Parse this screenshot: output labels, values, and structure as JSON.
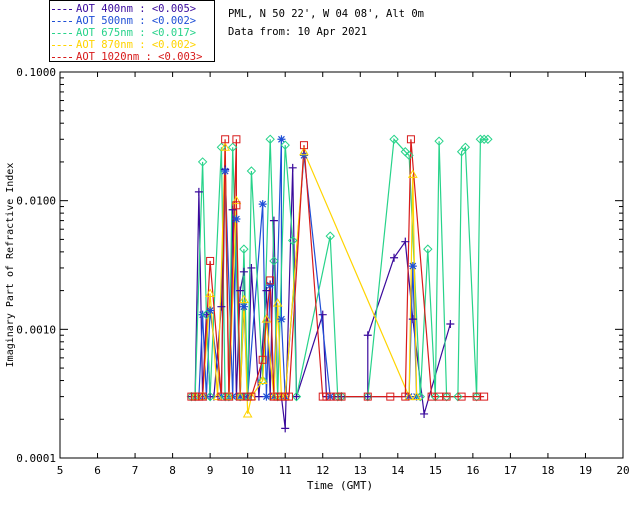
{
  "info": {
    "location": "PML, N 50 22', W 04 08', Alt 0m",
    "date": "Data from: 10 Apr 2021"
  },
  "legend": [
    {
      "label": "AOT  400nm : <0.005>",
      "color": "#3a0a9c"
    },
    {
      "label": "AOT  500nm : <0.002>",
      "color": "#1f4fd6"
    },
    {
      "label": "AOT  675nm : <0.017>",
      "color": "#27d38a"
    },
    {
      "label": "AOT  870nm : <0.002>",
      "color": "#ffd400"
    },
    {
      "label": "AOT 1020nm : <0.003>",
      "color": "#d81b1b"
    }
  ],
  "chart_data": {
    "type": "line",
    "title": "",
    "xlabel": "Time (GMT)",
    "ylabel": "Imaginary Part of Refractive Index",
    "xlim": [
      5,
      20
    ],
    "ylim": [
      0.0001,
      0.1
    ],
    "yscale": "log",
    "xticks": [
      "5",
      "6",
      "7",
      "8",
      "9",
      "10",
      "11",
      "12",
      "13",
      "14",
      "15",
      "16",
      "17",
      "18",
      "19",
      "20"
    ],
    "yticks": [
      "0.0001",
      "0.0010",
      "0.0100",
      "0.1000"
    ],
    "series": [
      {
        "name": "AOT 400nm",
        "color": "#3a0a9c",
        "marker": "+",
        "points": [
          [
            8.5,
            0.0003
          ],
          [
            8.6,
            0.0003
          ],
          [
            8.7,
            0.0117
          ],
          [
            8.8,
            0.0003
          ],
          [
            8.9,
            0.0013
          ],
          [
            9.0,
            0.0003
          ],
          [
            9.1,
            0.0003
          ],
          [
            9.3,
            0.0015
          ],
          [
            9.4,
            0.0175
          ],
          [
            9.5,
            0.0003
          ],
          [
            9.6,
            0.0085
          ],
          [
            9.7,
            0.0003
          ],
          [
            9.8,
            0.002
          ],
          [
            9.9,
            0.0028
          ],
          [
            10.0,
            0.0003
          ],
          [
            10.1,
            0.003
          ],
          [
            10.3,
            0.0003
          ],
          [
            10.5,
            0.002
          ],
          [
            10.6,
            0.0003
          ],
          [
            10.7,
            0.007
          ],
          [
            10.8,
            0.0003
          ],
          [
            10.9,
            0.0003
          ],
          [
            11.0,
            0.00017
          ],
          [
            11.2,
            0.018
          ],
          [
            11.3,
            0.0003
          ],
          [
            12.0,
            0.0013
          ],
          [
            12.1,
            0.0003
          ],
          [
            12.3,
            0.0003
          ],
          [
            12.5,
            0.0003
          ],
          [
            13.2,
            0.0003
          ],
          [
            13.2,
            0.0009
          ],
          [
            13.9,
            0.0036
          ],
          [
            14.2,
            0.0048
          ],
          [
            14.4,
            0.0012
          ],
          [
            14.7,
            0.00022
          ],
          [
            15.4,
            0.0011
          ]
        ]
      },
      {
        "name": "AOT 500nm",
        "color": "#1f4fd6",
        "marker": "*",
        "points": [
          [
            8.7,
            0.0003
          ],
          [
            8.8,
            0.0013
          ],
          [
            8.9,
            0.0003
          ],
          [
            9.0,
            0.0014
          ],
          [
            9.3,
            0.0003
          ],
          [
            9.4,
            0.017
          ],
          [
            9.6,
            0.0003
          ],
          [
            9.7,
            0.0072
          ],
          [
            9.8,
            0.0003
          ],
          [
            9.9,
            0.0015
          ],
          [
            10.0,
            0.0003
          ],
          [
            10.4,
            0.0094
          ],
          [
            10.5,
            0.0003
          ],
          [
            10.6,
            0.0022
          ],
          [
            10.7,
            0.0003
          ],
          [
            10.9,
            0.03
          ],
          [
            10.9,
            0.0012
          ],
          [
            11.0,
            0.0003
          ],
          [
            11.5,
            0.0225
          ],
          [
            12.2,
            0.0003
          ],
          [
            14.3,
            0.0003
          ],
          [
            14.4,
            0.0031
          ],
          [
            14.5,
            0.0003
          ]
        ]
      },
      {
        "name": "AOT 675nm",
        "color": "#27d38a",
        "marker": "diamond",
        "points": [
          [
            8.5,
            0.0003
          ],
          [
            8.6,
            0.0003
          ],
          [
            8.8,
            0.02
          ],
          [
            8.9,
            0.0013
          ],
          [
            9.0,
            0.0003
          ],
          [
            9.3,
            0.026
          ],
          [
            9.4,
            0.0003
          ],
          [
            9.5,
            0.0003
          ],
          [
            9.6,
            0.026
          ],
          [
            9.8,
            0.0003
          ],
          [
            9.9,
            0.0042
          ],
          [
            10.0,
            0.0003
          ],
          [
            10.1,
            0.017
          ],
          [
            10.4,
            0.0004
          ],
          [
            10.6,
            0.03
          ],
          [
            10.7,
            0.0034
          ],
          [
            10.8,
            0.0003
          ],
          [
            11.0,
            0.027
          ],
          [
            11.2,
            0.0049
          ],
          [
            11.3,
            0.0003
          ],
          [
            12.2,
            0.0053
          ],
          [
            12.4,
            0.0003
          ],
          [
            12.5,
            0.0003
          ],
          [
            13.2,
            0.0003
          ],
          [
            13.9,
            0.03
          ],
          [
            14.2,
            0.024
          ],
          [
            14.3,
            0.0225
          ],
          [
            14.6,
            0.0003
          ],
          [
            14.8,
            0.0042
          ],
          [
            15.0,
            0.0003
          ],
          [
            15.1,
            0.029
          ],
          [
            15.3,
            0.0003
          ],
          [
            15.6,
            0.0003
          ],
          [
            15.7,
            0.024
          ],
          [
            15.8,
            0.026
          ],
          [
            16.1,
            0.0003
          ],
          [
            16.2,
            0.03
          ],
          [
            16.3,
            0.03
          ],
          [
            16.4,
            0.03
          ]
        ]
      },
      {
        "name": "AOT 870nm",
        "color": "#ffd400",
        "marker": "triangle",
        "points": [
          [
            8.6,
            0.0003
          ],
          [
            8.8,
            0.0003
          ],
          [
            9.0,
            0.0019
          ],
          [
            9.2,
            0.0003
          ],
          [
            9.4,
            0.026
          ],
          [
            9.5,
            0.0003
          ],
          [
            9.7,
            0.01
          ],
          [
            9.8,
            0.0003
          ],
          [
            9.9,
            0.0017
          ],
          [
            10.0,
            0.00022
          ],
          [
            10.1,
            0.0003
          ],
          [
            10.4,
            0.0004
          ],
          [
            10.5,
            0.0012
          ],
          [
            10.7,
            0.0003
          ],
          [
            10.8,
            0.0016
          ],
          [
            10.9,
            0.0003
          ],
          [
            11.0,
            0.0003
          ],
          [
            11.5,
            0.024
          ],
          [
            14.3,
            0.0003
          ],
          [
            14.4,
            0.016
          ],
          [
            14.5,
            0.0003
          ]
        ]
      },
      {
        "name": "AOT 1020nm",
        "color": "#d81b1b",
        "marker": "square",
        "points": [
          [
            8.5,
            0.0003
          ],
          [
            8.6,
            0.0003
          ],
          [
            8.7,
            0.0003
          ],
          [
            8.8,
            0.0003
          ],
          [
            9.0,
            0.0034
          ],
          [
            9.3,
            0.0003
          ],
          [
            9.4,
            0.03
          ],
          [
            9.5,
            0.0003
          ],
          [
            9.7,
            0.03
          ],
          [
            9.7,
            0.0092
          ],
          [
            9.8,
            0.0003
          ],
          [
            10.0,
            0.0003
          ],
          [
            10.1,
            0.0003
          ],
          [
            10.4,
            0.00058
          ],
          [
            10.6,
            0.0024
          ],
          [
            10.7,
            0.0003
          ],
          [
            10.8,
            0.0003
          ],
          [
            10.9,
            0.0003
          ],
          [
            11.0,
            0.0003
          ],
          [
            11.1,
            0.0003
          ],
          [
            11.5,
            0.027
          ],
          [
            12.0,
            0.0003
          ],
          [
            12.1,
            0.0003
          ],
          [
            12.2,
            0.0003
          ],
          [
            12.4,
            0.0003
          ],
          [
            12.5,
            0.0003
          ],
          [
            13.2,
            0.0003
          ],
          [
            13.8,
            0.0003
          ],
          [
            14.2,
            0.0003
          ],
          [
            14.35,
            0.03
          ],
          [
            14.9,
            0.0003
          ],
          [
            15.1,
            0.0003
          ],
          [
            15.3,
            0.0003
          ],
          [
            15.7,
            0.0003
          ],
          [
            16.1,
            0.0003
          ],
          [
            16.3,
            0.0003
          ]
        ]
      }
    ]
  }
}
